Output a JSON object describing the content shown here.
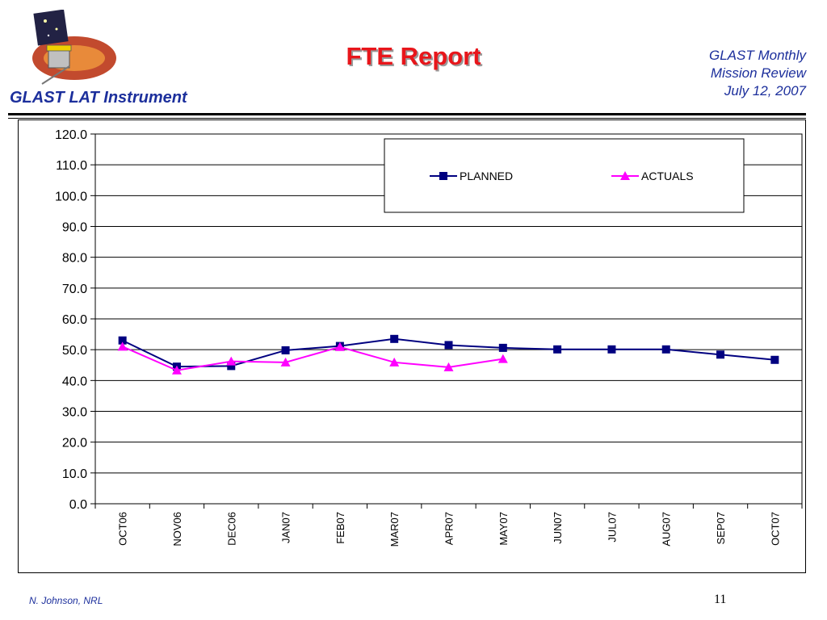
{
  "header": {
    "org": "GLAST LAT Instrument",
    "title": "FTE Report",
    "meeting_lines": [
      "GLAST Monthly",
      "Mission Review",
      "July 12, 2007"
    ]
  },
  "footer": {
    "author": "N. Johnson, NRL",
    "page": "11"
  },
  "logo": {
    "icon": "glast-mission-logo-icon",
    "colors": {
      "orbit": "#c24a2e",
      "sky": "#222244",
      "panel": "#f0d000"
    }
  },
  "colors": {
    "title": "#e8161b",
    "header_text": "#1c2f9c",
    "planned": "#000080",
    "actuals": "#ff00ff"
  },
  "chart_data": {
    "type": "line",
    "title": "",
    "xlabel": "",
    "ylabel": "",
    "categories": [
      "OCT06",
      "NOV06",
      "DEC06",
      "JAN07",
      "FEB07",
      "MAR07",
      "APR07",
      "MAY07",
      "JUN07",
      "JUL07",
      "AUG07",
      "SEP07",
      "OCT07"
    ],
    "ylim": [
      0,
      120
    ],
    "yticks": [
      "0.0",
      "10.0",
      "20.0",
      "30.0",
      "40.0",
      "50.0",
      "60.0",
      "70.0",
      "80.0",
      "90.0",
      "100.0",
      "110.0",
      "120.0"
    ],
    "grid": "horizontal",
    "legend_position": "top-right",
    "series": [
      {
        "name": "PLANNED",
        "marker": "square",
        "color": "#000080",
        "values": [
          53.0,
          44.5,
          44.7,
          49.8,
          51.2,
          53.5,
          51.5,
          50.6,
          50.1,
          50.1,
          50.1,
          48.4,
          46.7
        ]
      },
      {
        "name": "ACTUALS",
        "marker": "triangle",
        "color": "#ff00ff",
        "values": [
          51.0,
          43.3,
          46.2,
          45.9,
          50.9,
          45.9,
          44.3,
          47.0,
          null,
          null,
          null,
          null,
          null
        ]
      }
    ]
  }
}
